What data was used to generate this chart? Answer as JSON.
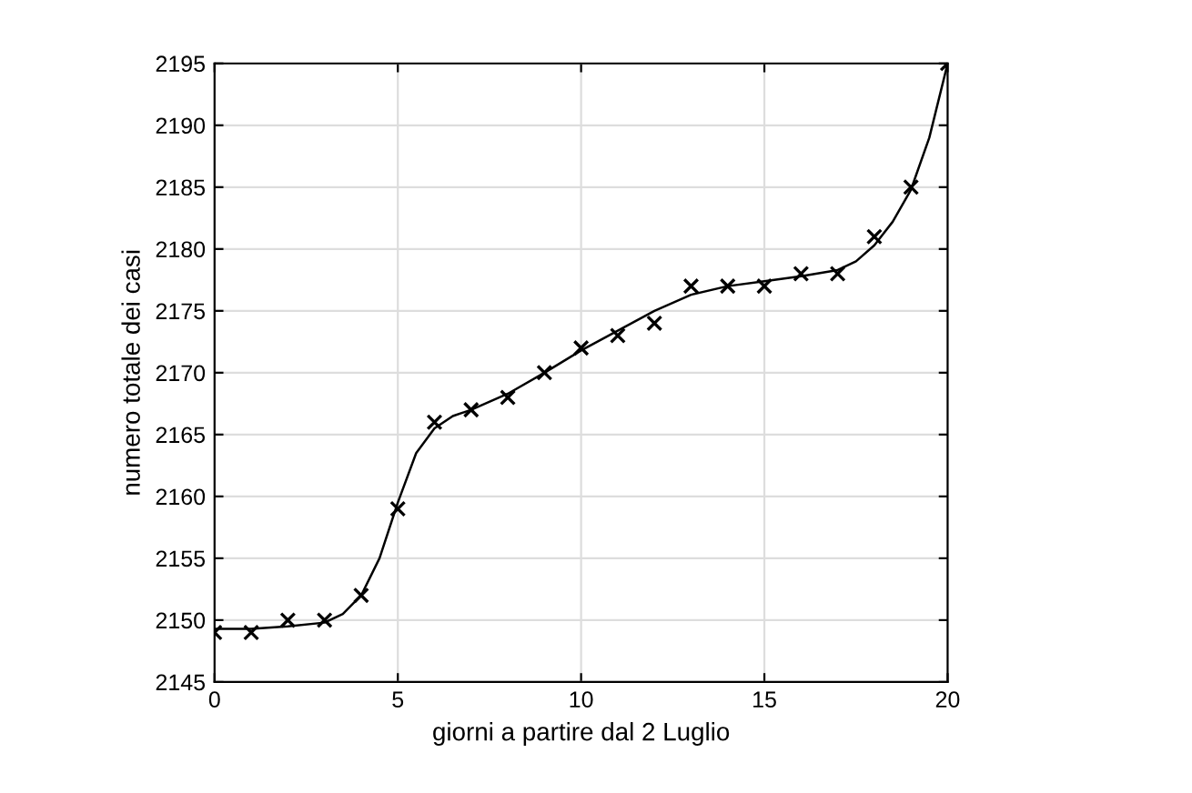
{
  "chart_data": {
    "type": "scatter",
    "xlabel": "giorni a partire dal 2 Luglio",
    "ylabel": "numero totale dei casi",
    "xlim": [
      0,
      20
    ],
    "xticks": [
      0,
      5,
      10,
      15,
      20
    ],
    "ylim": [
      2145,
      2195
    ],
    "yticks": [
      2145,
      2150,
      2155,
      2160,
      2165,
      2170,
      2175,
      2180,
      2185,
      2190,
      2195
    ],
    "grid": true,
    "line_style": "solid",
    "series": [
      {
        "marker": "cross",
        "color": "#000000",
        "x": [
          0,
          1,
          2,
          3,
          4,
          5,
          6,
          7,
          8,
          9,
          10,
          11,
          12,
          13,
          14,
          15,
          16,
          17,
          18,
          19,
          20
        ],
        "values": [
          2149,
          2149,
          2150,
          2150,
          2152,
          2159,
          2166,
          2167,
          2168,
          2170,
          2172,
          2173,
          2174,
          2177,
          2177,
          2177,
          2178,
          2178,
          2181,
          2185,
          2195
        ]
      },
      {
        "type": "line",
        "marker": "none",
        "color": "#000000",
        "x": [
          0,
          1,
          2,
          3,
          3.5,
          4,
          4.5,
          5,
          5.5,
          6,
          6.5,
          7,
          8,
          9,
          10,
          11,
          12,
          13,
          14,
          15,
          16,
          17,
          17.5,
          18,
          18.5,
          19,
          19.5,
          20
        ],
        "values": [
          2149.3,
          2149.3,
          2149.5,
          2149.8,
          2150.5,
          2152,
          2155,
          2159.5,
          2163.5,
          2165.5,
          2166.5,
          2167,
          2168.3,
          2170,
          2171.8,
          2173.4,
          2175,
          2176.3,
          2177,
          2177.4,
          2177.8,
          2178.3,
          2179,
          2180.3,
          2182.2,
          2184.8,
          2189,
          2195
        ]
      }
    ]
  }
}
